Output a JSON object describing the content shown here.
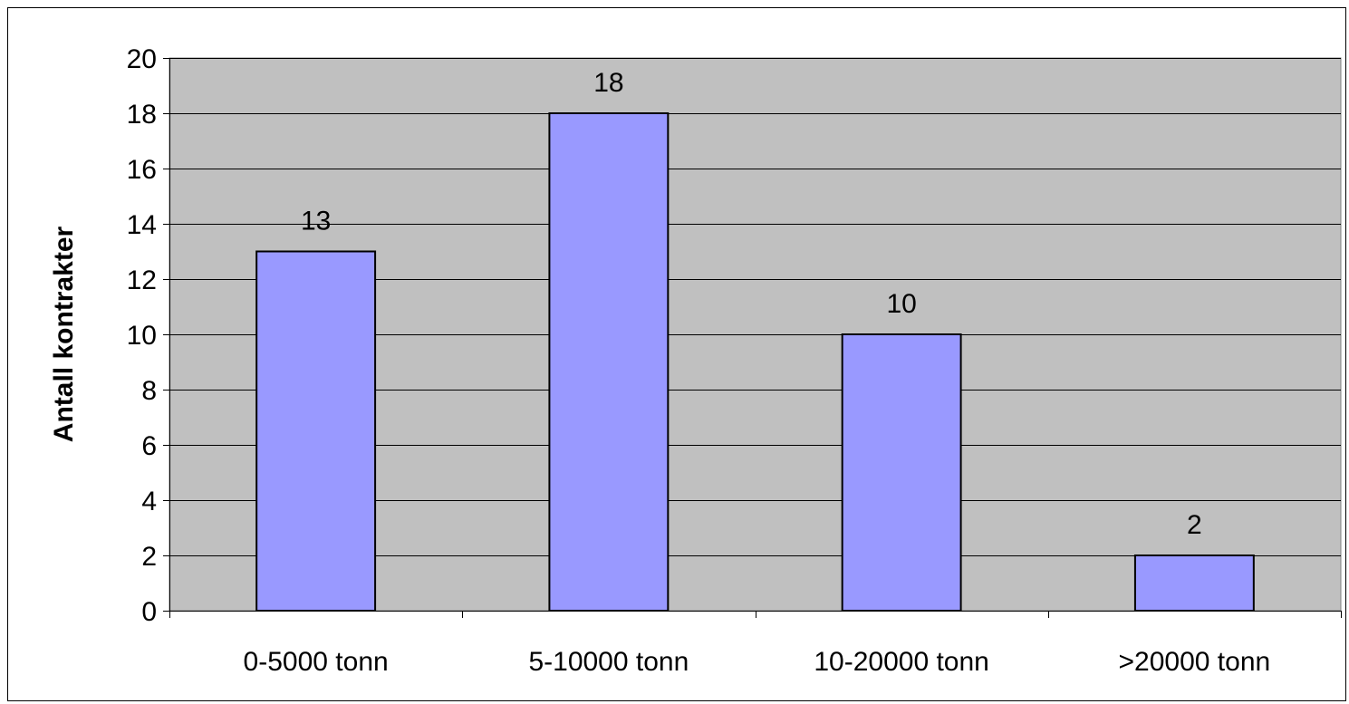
{
  "chart_data": {
    "type": "bar",
    "categories": [
      "0-5000 tonn",
      "5-10000 tonn",
      "10-20000 tonn",
      ">20000 tonn"
    ],
    "values": [
      13,
      18,
      10,
      2
    ],
    "data_labels": [
      "13",
      "18",
      "10",
      "2"
    ],
    "title": "",
    "xlabel": "",
    "ylabel": "Antall kontrakter",
    "ylim": [
      0,
      20
    ],
    "yticks": [
      0,
      2,
      4,
      6,
      8,
      10,
      12,
      14,
      16,
      18,
      20
    ],
    "grid": true,
    "legend": "none",
    "colors": {
      "bar_fill": "#9999ff",
      "bar_stroke": "#000000",
      "plot_background": "#c0c0c0",
      "gridline": "#000000"
    }
  }
}
